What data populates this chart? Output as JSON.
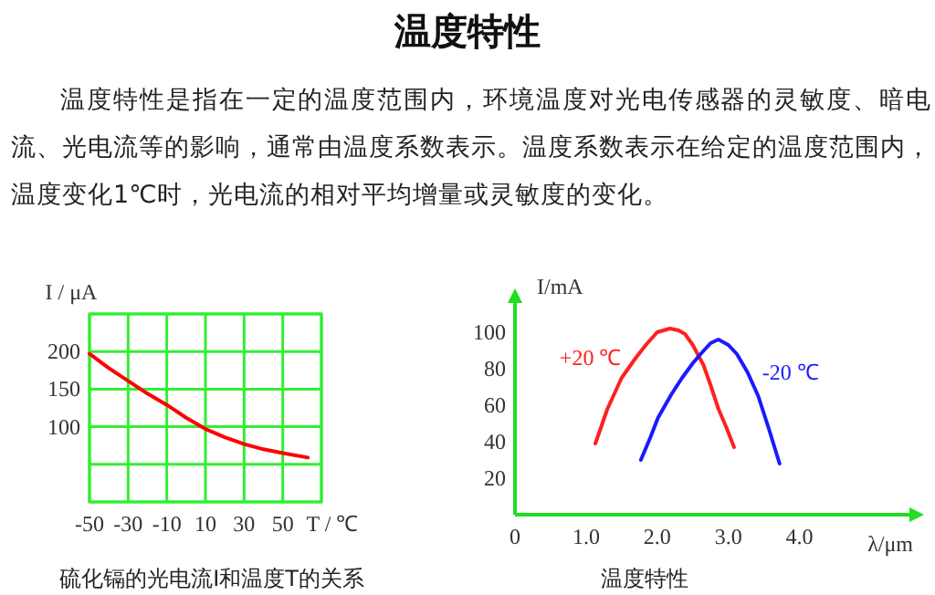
{
  "chart_data": [
    {
      "type": "other",
      "title": "温度特性",
      "subtitle": "温度特性是指在一定的温度范围内，环境温度对光电传感器的灵敏度、暗电流、光电流等的影响，通常由温度系数表示。温度系数表示在给定的温度范围内，温度变化1℃时，光电流的相对平均增量或灵敏度的变化。"
    },
    {
      "type": "line",
      "xlabel": "T / ℃",
      "ylabel": "I / μA",
      "annotations": [
        "硫化镉的光电流I和温度T的关系"
      ],
      "xlim": [
        -50,
        70
      ],
      "ylim": [
        0,
        250
      ],
      "xticks": [
        -50,
        -30,
        -10,
        10,
        30,
        50,
        {
          "value": 70,
          "label": null
        }
      ],
      "yticks": [
        {
          "value": 0,
          "label": null
        },
        {
          "value": 50,
          "label": null
        },
        100,
        150,
        200,
        {
          "value": 250,
          "label": null
        }
      ],
      "grid": true,
      "series": [
        {
          "color": "#ff0000",
          "x": [
            -50,
            -40,
            -30,
            -20,
            -10,
            0,
            10,
            20,
            30,
            40,
            50,
            63
          ],
          "values": [
            197,
            178,
            161,
            144,
            129,
            112,
            97,
            86,
            77,
            70,
            65,
            59
          ]
        }
      ]
    },
    {
      "type": "line",
      "xlabel": "λ/μm",
      "ylabel": "I/mA",
      "annotations": [
        "温度特性"
      ],
      "xlim": [
        0,
        5.7
      ],
      "ylim": [
        0,
        122
      ],
      "xticks": [
        0,
        {
          "value": 1,
          "label": "1.0"
        },
        {
          "value": 2,
          "label": "2.0"
        },
        {
          "value": 3,
          "label": "3.0"
        },
        {
          "value": 4,
          "label": "4.0"
        }
      ],
      "yticks": [
        20,
        40,
        60,
        80,
        100
      ],
      "series": [
        {
          "name": "+20 ℃",
          "color": "#ff2020",
          "x": [
            1.13,
            1.3,
            1.5,
            1.7,
            1.84,
            2.0,
            2.18,
            2.3,
            2.39,
            2.5,
            2.65,
            2.75,
            2.86,
            2.97,
            3.08
          ],
          "values": [
            39,
            58,
            75,
            86,
            93,
            100,
            102,
            101,
            99,
            93,
            82,
            71,
            58,
            48,
            37
          ]
        },
        {
          "name": "-20 ℃",
          "color": "#1a1aff",
          "x": [
            1.77,
            1.9,
            2.01,
            2.2,
            2.35,
            2.5,
            2.61,
            2.75,
            2.86,
            3.0,
            3.12,
            3.27,
            3.42,
            3.57,
            3.72
          ],
          "values": [
            30,
            42,
            53,
            66,
            75,
            83,
            88,
            94,
            96,
            93,
            88,
            78,
            65,
            47,
            28
          ]
        }
      ]
    }
  ]
}
